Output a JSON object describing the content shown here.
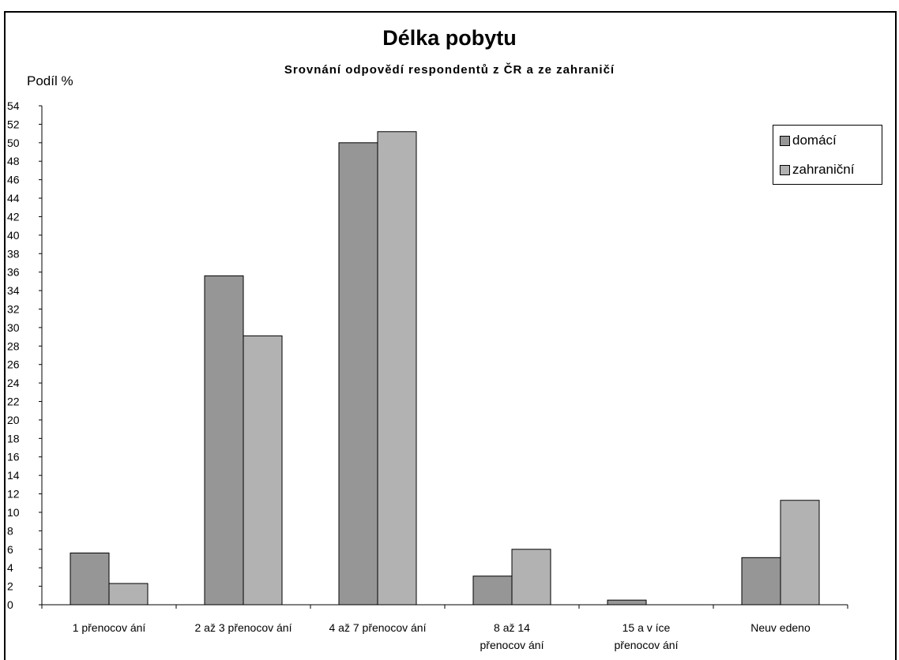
{
  "header_caption": "",
  "colors": {
    "domaci": "#969696",
    "zahranicni": "#b2b2b2"
  },
  "chart_data": {
    "type": "bar",
    "title": "Délka pobytu",
    "subtitle": "Srovnání odpovědí respondentů z ČR a ze zahraničí",
    "ylabel": "Podíl %",
    "xlabel": "",
    "ylim": [
      0,
      54
    ],
    "yticks": [
      0,
      2,
      4,
      6,
      8,
      10,
      12,
      14,
      16,
      18,
      20,
      22,
      24,
      26,
      28,
      30,
      32,
      34,
      36,
      38,
      40,
      42,
      44,
      46,
      48,
      50,
      52,
      54
    ],
    "grid": false,
    "legend_position": "top-right",
    "categories": [
      [
        "1 přenocov ání"
      ],
      [
        "2 až 3 přenocov ání"
      ],
      [
        "4 až 7 přenocov ání"
      ],
      [
        "8 až 14",
        "přenocov ání"
      ],
      [
        "15 a v íce",
        "přenocov ání"
      ],
      [
        "Neuv edeno"
      ]
    ],
    "series": [
      {
        "name": "domácí",
        "values": [
          5.6,
          35.6,
          50.0,
          3.1,
          0.5,
          5.1
        ]
      },
      {
        "name": "zahraniční",
        "values": [
          2.3,
          29.1,
          51.2,
          6.0,
          0.0,
          11.3
        ]
      }
    ]
  }
}
